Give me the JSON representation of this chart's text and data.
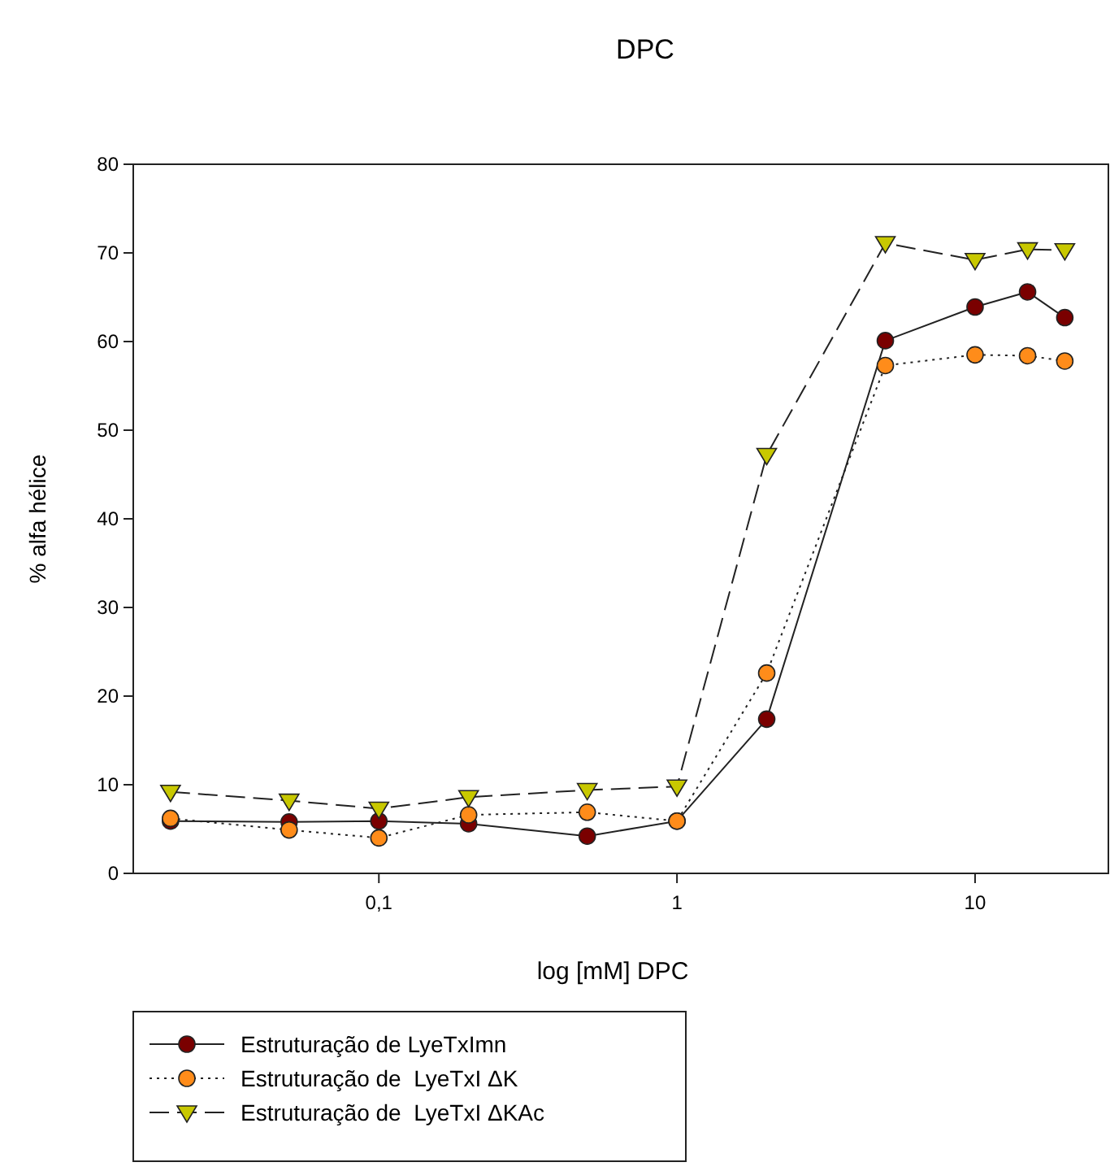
{
  "chart_data": {
    "type": "line",
    "title": "DPC",
    "xlabel": "log [mM] DPC",
    "ylabel": "% alfa hélice",
    "log": "x",
    "x": [
      0.02,
      0.05,
      0.1,
      0.2,
      0.5,
      1,
      2,
      5,
      10,
      15,
      20
    ],
    "xlim": [
      0.015,
      28
    ],
    "xticks": [
      {
        "value": 0.1,
        "label": "0,1"
      },
      1,
      10
    ],
    "ylim": [
      0,
      80
    ],
    "yticks": [
      0,
      10,
      20,
      30,
      40,
      50,
      60,
      70,
      80
    ],
    "grid": false,
    "legend": "bottom left",
    "series": [
      {
        "name": "Estruturação de LyeTxImn",
        "color": "#7a0000",
        "marker": "circle",
        "line_style": "solid",
        "values": [
          5.9,
          5.8,
          5.9,
          5.6,
          4.2,
          5.9,
          17.4,
          60.1,
          63.9,
          65.6,
          62.7
        ]
      },
      {
        "name": "Estruturação de  LyeTxI ΔK",
        "color": "#ff8c1a",
        "marker": "circle",
        "line_style": "dotted",
        "values": [
          6.2,
          4.9,
          4.0,
          6.6,
          6.9,
          5.9,
          22.6,
          57.3,
          58.5,
          58.4,
          57.8
        ]
      },
      {
        "name": "Estruturação de  LyeTxI ΔKAc",
        "color": "#c8c800",
        "marker": "triangle",
        "line_style": "dashed",
        "values": [
          9.2,
          8.2,
          7.3,
          8.6,
          9.4,
          9.8,
          47.2,
          71.1,
          69.2,
          70.4,
          70.3
        ]
      }
    ]
  }
}
